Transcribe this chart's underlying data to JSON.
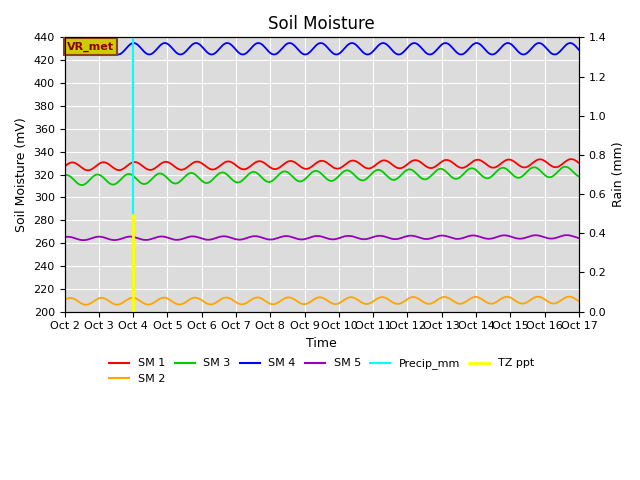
{
  "title": "Soil Moisture",
  "xlabel": "Time",
  "ylabel_left": "Soil Moisture (mV)",
  "ylabel_right": "Rain (mm)",
  "ylim_left": [
    200,
    440
  ],
  "ylim_right": [
    0.0,
    1.4
  ],
  "xlim": [
    0,
    15
  ],
  "x_tick_labels": [
    "Oct 2",
    "Oct 3",
    "Oct 4",
    "Oct 5",
    "Oct 6",
    "Oct 7",
    "Oct 8",
    "Oct 9",
    "Oct 10",
    "Oct 11",
    "Oct 12",
    "Oct 13",
    "Oct 14",
    "Oct 15",
    "Oct 16",
    "Oct 17"
  ],
  "bg_color": "#dcdcdc",
  "annotation_label": "VR_met",
  "annotation_box_color": "#cccc00",
  "annotation_text_color": "#8b0000",
  "sm1_base": 327,
  "sm1_amp": 3.5,
  "sm2_base": 209,
  "sm2_amp": 3.0,
  "sm3_base": 315,
  "sm3_amp": 4.5,
  "sm4_base": 430,
  "sm4_amp": 5.0,
  "sm5_base": 264,
  "sm5_amp": 1.5,
  "sm1_color": "#ff0000",
  "sm2_color": "#ffa500",
  "sm3_color": "#00cc00",
  "sm4_color": "#0000ff",
  "sm5_color": "#9900bb",
  "precip_color": "#00ffff",
  "tzppt_color": "#ffff00",
  "vertical_line_x": 2,
  "precip_line_y1": 420,
  "precip_line_y2": 440,
  "tzppt_line_y1": 200,
  "tzppt_line_y2": 285,
  "n_points": 500,
  "wave_freq": 1.1,
  "title_fontsize": 12,
  "axis_label_fontsize": 9,
  "tick_fontsize": 8
}
